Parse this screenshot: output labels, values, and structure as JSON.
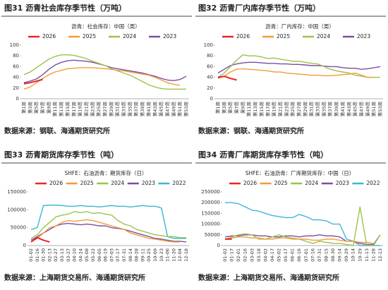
{
  "chart_data": [
    {
      "type": "line",
      "title": "图31  沥青社会库存季节性（万吨）",
      "subtitle": "沥青：社会库存：中国（周）",
      "source": "数据来源：钢联、海通期货研究所",
      "categories": [
        "第1周",
        "第3周",
        "第5周",
        "第7周",
        "第9周",
        "第11周",
        "第13周",
        "第15周",
        "第17周",
        "第19周",
        "第21周",
        "第23周",
        "第25周",
        "第27周",
        "第29周",
        "第31周",
        "第33周",
        "第35周",
        "第37周",
        "第39周",
        "第41周",
        "第43周",
        "第45周",
        "第47周",
        "第49周",
        "第51周",
        "第53周"
      ],
      "ylim": [
        0,
        100
      ],
      "yticks": [
        0,
        20,
        40,
        60,
        80,
        100
      ],
      "grid": false,
      "series": [
        {
          "name": "2026",
          "color": "#e8262b",
          "values": [
            28,
            30,
            33,
            36,
            null,
            null,
            null,
            null,
            null,
            null,
            null,
            null,
            null,
            null,
            null,
            null,
            null,
            null,
            null,
            null,
            null,
            null,
            null,
            null,
            null,
            null,
            null
          ]
        },
        {
          "name": "2025",
          "color": "#f59a3c",
          "values": [
            18,
            22,
            30,
            38,
            45,
            50,
            53,
            56,
            57,
            58,
            58,
            58,
            57,
            56,
            55,
            53,
            52,
            50,
            48,
            46,
            44,
            40,
            35,
            30,
            27,
            25,
            null
          ]
        },
        {
          "name": "2024",
          "color": "#9bc34a",
          "values": [
            45,
            50,
            58,
            66,
            74,
            79,
            82,
            82,
            81,
            78,
            75,
            70,
            66,
            62,
            56,
            52,
            48,
            44,
            38,
            32,
            26,
            22,
            19,
            18,
            18,
            18,
            18
          ]
        },
        {
          "name": "2023",
          "color": "#7b4ea3",
          "values": [
            30,
            33,
            37,
            45,
            55,
            63,
            68,
            71,
            72,
            71,
            70,
            68,
            65,
            62,
            58,
            56,
            54,
            52,
            50,
            48,
            45,
            42,
            38,
            35,
            34,
            36,
            42
          ]
        }
      ]
    },
    {
      "type": "line",
      "title": "图32  沥青厂内库存季节性（万吨）",
      "subtitle": "沥青：厂内库存：中国（周）",
      "source": "数据来源：钢联、海通期货研究所",
      "categories": [
        "第1周",
        "第3周",
        "第5周",
        "第7周",
        "第9周",
        "第11周",
        "第13周",
        "第15周",
        "第17周",
        "第19周",
        "第21周",
        "第23周",
        "第25周",
        "第27周",
        "第29周",
        "第31周",
        "第33周",
        "第35周",
        "第37周",
        "第39周",
        "第41周",
        "第43周",
        "第45周",
        "第47周",
        "第49周",
        "第51周",
        "第53周"
      ],
      "ylim": [
        0,
        100
      ],
      "yticks": [
        0,
        20,
        40,
        60,
        80,
        100
      ],
      "grid": false,
      "series": [
        {
          "name": "2026",
          "color": "#e8262b",
          "values": [
            40,
            42,
            38,
            35,
            null,
            null,
            null,
            null,
            null,
            null,
            null,
            null,
            null,
            null,
            null,
            null,
            null,
            null,
            null,
            null,
            null,
            null,
            null,
            null,
            null,
            null,
            null
          ]
        },
        {
          "name": "2025",
          "color": "#f59a3c",
          "values": [
            38,
            42,
            50,
            55,
            56,
            55,
            54,
            53,
            52,
            50,
            50,
            48,
            47,
            46,
            45,
            44,
            44,
            43,
            43,
            44,
            45,
            46,
            48,
            44,
            40,
            40,
            null
          ]
        },
        {
          "name": "2024",
          "color": "#9bc34a",
          "values": [
            40,
            48,
            60,
            72,
            82,
            80,
            80,
            78,
            75,
            76,
            74,
            72,
            70,
            70,
            68,
            66,
            65,
            60,
            55,
            52,
            50,
            48,
            44,
            42,
            40,
            40,
            40
          ]
        },
        {
          "name": "2023",
          "color": "#7b4ea3",
          "values": [
            48,
            55,
            62,
            65,
            67,
            68,
            68,
            67,
            66,
            66,
            65,
            65,
            64,
            64,
            63,
            62,
            62,
            61,
            60,
            60,
            58,
            57,
            57,
            55,
            56,
            58,
            60
          ]
        }
      ]
    },
    {
      "type": "line",
      "title": "图33  沥青期货库存季节性（吨）",
      "subtitle": "SHFE：石油沥青：期货库存（日）",
      "source": "数据来源：上海期货交易所、海通期货研究所",
      "categories": [
        "01-02",
        "01-16",
        "01-30",
        "02-13",
        "02-27",
        "03-13",
        "03-27",
        "04-10",
        "04-24",
        "05-08",
        "05-22",
        "06-05",
        "06-19",
        "07-03",
        "07-17",
        "07-31",
        "08-14",
        "08-28",
        "09-11",
        "09-25",
        "10-09",
        "10-23",
        "11-06",
        "11-20",
        "12-04",
        "12-18"
      ],
      "ylim": [
        0,
        150000
      ],
      "yticks": [
        0,
        50000,
        100000,
        150000
      ],
      "grid": false,
      "series": [
        {
          "name": "2026",
          "color": "#e8262b",
          "values": [
            10000,
            22000,
            15000,
            10000,
            null,
            null,
            null,
            null,
            null,
            null,
            null,
            null,
            null,
            null,
            null,
            null,
            null,
            null,
            null,
            null,
            null,
            null,
            null,
            null,
            null,
            null
          ]
        },
        {
          "name": "2025",
          "color": "#f59a3c",
          "values": [
            10000,
            20000,
            35000,
            50000,
            55000,
            65000,
            70000,
            68000,
            70000,
            72000,
            70000,
            65000,
            60000,
            55000,
            50000,
            45000,
            35000,
            30000,
            25000,
            20000,
            18000,
            15000,
            12000,
            10000,
            10000,
            null
          ]
        },
        {
          "name": "2024",
          "color": "#9bc34a",
          "values": [
            20000,
            30000,
            50000,
            65000,
            80000,
            85000,
            88000,
            95000,
            92000,
            95000,
            90000,
            92000,
            88000,
            85000,
            70000,
            60000,
            55000,
            45000,
            40000,
            35000,
            30000,
            28000,
            25000,
            25000,
            22000,
            22000
          ]
        },
        {
          "name": "2023",
          "color": "#7b4ea3",
          "values": [
            15000,
            25000,
            35000,
            45000,
            55000,
            60000,
            62000,
            60000,
            58000,
            60000,
            58000,
            55000,
            55000,
            50000,
            48000,
            45000,
            40000,
            35000,
            30000,
            25000,
            20000,
            18000,
            15000,
            12000,
            12000,
            10000
          ]
        },
        {
          "name": "2022",
          "color": "#3db6d8",
          "values": [
            45000,
            50000,
            112000,
            113000,
            113000,
            112000,
            110000,
            110000,
            112000,
            110000,
            110000,
            108000,
            110000,
            112000,
            110000,
            110000,
            108000,
            110000,
            112000,
            110000,
            110000,
            105000,
            25000,
            20000,
            20000,
            20000
          ]
        }
      ]
    },
    {
      "type": "line",
      "title": "图34  沥青厂库期货库存季节性（吨）",
      "subtitle": "SHFE：石油沥青：厂库期货库存：中国（日）",
      "source": "数据来源：上海期货交易所、海通期货研究所",
      "categories": [
        "01-02",
        "01-17",
        "02-01",
        "02-16",
        "03-03",
        "03-18",
        "04-02",
        "04-17",
        "05-02",
        "05-17",
        "06-01",
        "06-16",
        "07-01",
        "07-16",
        "07-31",
        "08-15",
        "08-30",
        "09-14",
        "09-29",
        "10-14",
        "10-29",
        "11-13",
        "11-28",
        "12-13"
      ],
      "ylim": [
        0,
        250000
      ],
      "yticks": [
        0,
        50000,
        100000,
        150000,
        200000,
        250000
      ],
      "grid": false,
      "series": [
        {
          "name": "2026",
          "color": "#e8262b",
          "values": [
            30000,
            30000,
            null,
            null,
            null,
            null,
            null,
            null,
            null,
            null,
            null,
            null,
            null,
            null,
            null,
            null,
            null,
            null,
            null,
            null,
            null,
            null,
            null,
            null
          ]
        },
        {
          "name": "2025",
          "color": "#f59a3c",
          "values": [
            30000,
            35000,
            40000,
            40000,
            35000,
            35000,
            30000,
            30000,
            35000,
            35000,
            30000,
            30000,
            30000,
            25000,
            25000,
            30000,
            30000,
            25000,
            20000,
            20000,
            15000,
            15000,
            10000,
            null
          ]
        },
        {
          "name": "2024",
          "color": "#9bc34a",
          "values": [
            30000,
            40000,
            50000,
            55000,
            50000,
            30000,
            30000,
            40000,
            50000,
            40000,
            35000,
            30000,
            20000,
            10000,
            20000,
            15000,
            10000,
            10000,
            5000,
            0,
            180000,
            0,
            0,
            50000
          ]
        },
        {
          "name": "2023",
          "color": "#7b4ea3",
          "values": [
            40000,
            45000,
            45000,
            50000,
            50000,
            45000,
            45000,
            40000,
            40000,
            45000,
            45000,
            40000,
            45000,
            45000,
            50000,
            45000,
            45000,
            40000,
            20000,
            20000,
            10000,
            5000,
            5000,
            50000
          ]
        },
        {
          "name": "2022",
          "color": "#3db6d8",
          "values": [
            200000,
            200000,
            195000,
            180000,
            165000,
            160000,
            150000,
            140000,
            135000,
            130000,
            130000,
            145000,
            135000,
            120000,
            120000,
            115000,
            100000,
            100000,
            30000,
            20000,
            0,
            0,
            0,
            0
          ]
        }
      ]
    }
  ]
}
